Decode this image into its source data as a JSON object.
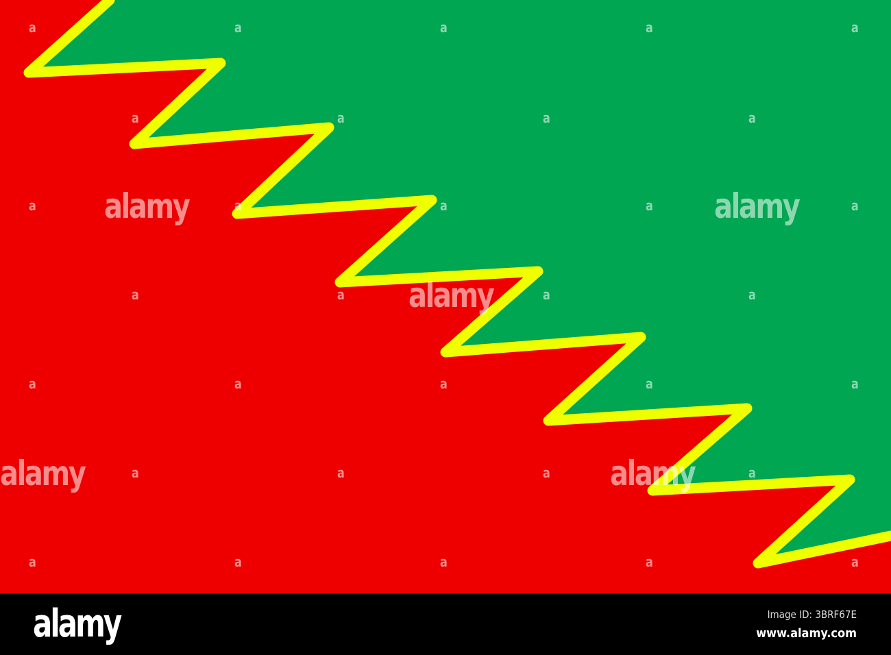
{
  "colors": {
    "green": "#00a651",
    "red": "#ee0000",
    "yellow": "#f0ff00",
    "footer": "#000000"
  },
  "watermark": {
    "text": "alamy",
    "mark": "a"
  },
  "footer": {
    "logo": "alamy",
    "image_id": "Image ID: 3BRF67E",
    "url": "www.alamy.com"
  }
}
